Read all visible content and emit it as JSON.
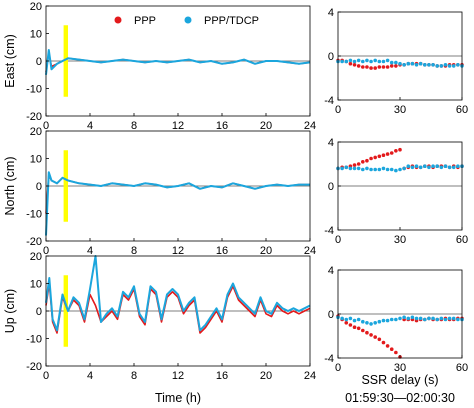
{
  "chart_data": [
    {
      "type": "line",
      "panel": "left-east",
      "ylabel": "East (cm)",
      "xlabel": "",
      "xlim": [
        0,
        24
      ],
      "ylim": [
        -20,
        20
      ],
      "xticks": [
        "0",
        "4",
        "8",
        "12",
        "16",
        "20",
        "24"
      ],
      "yticks": [
        "20",
        "10",
        "0",
        "-10",
        "-20"
      ],
      "highlight_x": [
        1.6,
        2.0
      ],
      "highlight_y": [
        -13,
        13
      ],
      "legend": {
        "placement": "top",
        "entries": [
          "PPP",
          "PPP/TDCP"
        ]
      },
      "series": [
        {
          "name": "PPP",
          "color": "#e31a1c",
          "x": [
            0,
            0.25,
            0.5,
            1,
            1.5,
            2,
            3,
            4,
            5,
            6,
            7,
            8,
            9,
            10,
            11,
            12,
            13,
            14,
            15,
            16,
            17,
            18,
            19,
            20,
            21,
            22,
            23,
            24
          ],
          "y": [
            -4,
            3,
            -2,
            -1,
            0,
            1,
            0.5,
            0,
            -0.5,
            0,
            0.5,
            0,
            -0.5,
            0,
            -0.5,
            0,
            0.5,
            -0.5,
            0,
            -1,
            -0.5,
            0.5,
            -1,
            0,
            0,
            -0.5,
            -1,
            -0.5
          ]
        },
        {
          "name": "PPP/TDCP",
          "color": "#1ba6dd",
          "x": [
            0,
            0.25,
            0.5,
            1,
            1.5,
            2,
            3,
            4,
            5,
            6,
            7,
            8,
            9,
            10,
            11,
            12,
            13,
            14,
            15,
            16,
            17,
            18,
            19,
            20,
            21,
            22,
            23,
            24
          ],
          "y": [
            -5,
            4,
            -3,
            -1,
            0,
            1,
            0.5,
            0,
            -0.5,
            0,
            0.5,
            0,
            -0.5,
            0,
            -0.5,
            0,
            0.5,
            -0.5,
            0,
            -1,
            -0.5,
            0.5,
            -1,
            0,
            0,
            -0.5,
            -1,
            -0.5
          ]
        }
      ]
    },
    {
      "type": "line",
      "panel": "left-north",
      "ylabel": "North (cm)",
      "xlabel": "",
      "xlim": [
        0,
        24
      ],
      "ylim": [
        -20,
        20
      ],
      "xticks": [
        "0",
        "4",
        "8",
        "12",
        "16",
        "20",
        "24"
      ],
      "yticks": [
        "20",
        "10",
        "0",
        "-10",
        "-20"
      ],
      "highlight_x": [
        1.6,
        2.0
      ],
      "highlight_y": [
        -13,
        13
      ],
      "series": [
        {
          "name": "PPP",
          "color": "#e31a1c",
          "x": [
            0,
            0.25,
            0.5,
            1,
            1.5,
            2,
            3,
            4,
            5,
            6,
            7,
            8,
            9,
            10,
            11,
            12,
            13,
            14,
            15,
            16,
            17,
            18,
            19,
            20,
            21,
            22,
            23,
            24
          ],
          "y": [
            -10,
            4,
            2,
            1,
            3,
            2,
            1,
            0.5,
            0,
            1,
            0.5,
            0,
            1,
            0.5,
            -0.5,
            0,
            1,
            -1,
            0,
            -0.5,
            1,
            0,
            -1,
            0,
            0.5,
            0,
            0.5,
            0.5
          ]
        },
        {
          "name": "PPP/TDCP",
          "color": "#1ba6dd",
          "x": [
            0,
            0.25,
            0.5,
            1,
            1.5,
            2,
            3,
            4,
            5,
            6,
            7,
            8,
            9,
            10,
            11,
            12,
            13,
            14,
            15,
            16,
            17,
            18,
            19,
            20,
            21,
            22,
            23,
            24
          ],
          "y": [
            -18,
            5,
            2,
            1,
            3,
            2,
            1,
            0.5,
            0,
            1,
            0.5,
            0,
            1,
            0.5,
            -0.5,
            0,
            1,
            -1,
            0,
            -0.5,
            1,
            0,
            -1,
            0,
            0.5,
            0,
            0.5,
            0.5
          ]
        }
      ]
    },
    {
      "type": "line",
      "panel": "left-up",
      "ylabel": "Up (cm)",
      "xlabel": "Time (h)",
      "xlim": [
        0,
        24
      ],
      "ylim": [
        -20,
        20
      ],
      "xticks": [
        "0",
        "4",
        "8",
        "12",
        "16",
        "20",
        "24"
      ],
      "yticks": [
        "20",
        "10",
        "0",
        "-10",
        "-20"
      ],
      "highlight_x": [
        1.6,
        2.0
      ],
      "highlight_y": [
        -13,
        13
      ],
      "series": [
        {
          "name": "PPP",
          "color": "#e31a1c",
          "x": [
            0,
            0.3,
            0.6,
            1,
            1.5,
            2,
            2.5,
            3,
            3.5,
            4,
            4.5,
            5,
            5.5,
            6,
            6.5,
            7,
            7.5,
            8,
            8.5,
            9,
            9.5,
            10,
            10.5,
            11,
            11.5,
            12,
            12.5,
            13,
            13.5,
            14,
            14.5,
            15,
            15.5,
            16,
            16.5,
            17,
            17.5,
            18,
            18.5,
            19,
            19.5,
            20,
            20.5,
            21,
            21.5,
            22,
            22.5,
            23,
            23.5,
            24
          ],
          "y": [
            2,
            10,
            -4,
            -8,
            5,
            0,
            4,
            2,
            -4,
            6,
            2,
            -4,
            -2,
            0,
            -3,
            6,
            4,
            8,
            -2,
            -5,
            8,
            6,
            -4,
            5,
            7,
            5,
            -1,
            2,
            4,
            -8,
            -6,
            -3,
            0,
            -4,
            5,
            9,
            4,
            2,
            0,
            -2,
            4,
            -1,
            -2,
            2,
            0,
            -1,
            0,
            -1,
            0,
            1
          ]
        },
        {
          "name": "PPP/TDCP",
          "color": "#1ba6dd",
          "x": [
            0,
            0.3,
            0.6,
            1,
            1.5,
            2,
            2.5,
            3,
            3.5,
            4,
            4.5,
            5,
            5.5,
            6,
            6.5,
            7,
            7.5,
            8,
            8.5,
            9,
            9.5,
            10,
            10.5,
            11,
            11.5,
            12,
            12.5,
            13,
            13.5,
            14,
            14.5,
            15,
            15.5,
            16,
            16.5,
            17,
            17.5,
            18,
            18.5,
            19,
            19.5,
            20,
            20.5,
            21,
            21.5,
            22,
            22.5,
            23,
            23.5,
            24
          ],
          "y": [
            3,
            12,
            -3,
            -7,
            6,
            0,
            5,
            3,
            -3,
            8,
            20,
            -4,
            -1,
            1,
            -2,
            7,
            5,
            9,
            -1,
            -4,
            9,
            7,
            -3,
            6,
            8,
            6,
            0,
            3,
            5,
            -7,
            -5,
            -2,
            1,
            -3,
            6,
            10,
            5,
            3,
            1,
            -1,
            5,
            0,
            -1,
            3,
            1,
            0,
            1,
            0,
            1,
            2
          ]
        }
      ]
    },
    {
      "type": "scatter",
      "panel": "right-east",
      "xlim": [
        0,
        60
      ],
      "ylim": [
        -4,
        4
      ],
      "xticks": [
        "0",
        "30",
        "60"
      ],
      "yticks": [
        "4",
        "0",
        "-4"
      ],
      "series": [
        {
          "name": "PPP",
          "color": "#e31a1c",
          "x": [
            0,
            2,
            4,
            6,
            8,
            10,
            12,
            14,
            16,
            18,
            20,
            22,
            24,
            26,
            28,
            30,
            32,
            34,
            36,
            38,
            40,
            42,
            44,
            46,
            48,
            50,
            52,
            54,
            56,
            58,
            60
          ],
          "y": [
            -0.4,
            -0.4,
            -0.5,
            -0.7,
            -0.8,
            -0.9,
            -1.0,
            -1.0,
            -1.1,
            -1.1,
            -1.0,
            -1.0,
            -1.0,
            -0.9,
            -0.9,
            -0.8,
            -0.8,
            -0.7,
            -0.7,
            -0.7,
            -0.7,
            -0.8,
            -0.8,
            -0.8,
            -0.9,
            -0.9,
            -0.9,
            -0.8,
            -0.8,
            -0.8,
            -0.8
          ]
        },
        {
          "name": "PPP/TDCP",
          "color": "#1ba6dd",
          "x": [
            0,
            2,
            4,
            6,
            8,
            10,
            12,
            14,
            16,
            18,
            20,
            22,
            24,
            26,
            28,
            30,
            32,
            34,
            36,
            38,
            40,
            42,
            44,
            46,
            48,
            50,
            52,
            54,
            56,
            58,
            60
          ],
          "y": [
            -0.5,
            -0.5,
            -0.5,
            -0.4,
            -0.5,
            -0.4,
            -0.5,
            -0.4,
            -0.5,
            -0.4,
            -0.5,
            -0.5,
            -0.4,
            -0.6,
            -0.6,
            -0.7,
            -0.8,
            -0.7,
            -0.7,
            -0.8,
            -0.7,
            -0.8,
            -0.8,
            -0.8,
            -0.9,
            -0.9,
            -0.8,
            -0.9,
            -0.9,
            -0.8,
            -0.9
          ]
        }
      ]
    },
    {
      "type": "scatter",
      "panel": "right-north",
      "xlim": [
        0,
        60
      ],
      "ylim": [
        -4,
        4
      ],
      "xticks": [
        "0",
        "30",
        "60"
      ],
      "yticks": [
        "4",
        "0",
        "-4"
      ],
      "series": [
        {
          "name": "PPP",
          "color": "#e31a1c",
          "x": [
            0,
            2,
            4,
            6,
            8,
            10,
            12,
            14,
            16,
            18,
            20,
            22,
            24,
            26,
            28,
            30,
            32,
            34,
            36,
            38,
            40,
            42,
            44,
            46,
            48,
            50,
            52,
            54,
            56,
            58,
            60
          ],
          "y": [
            1.6,
            1.7,
            1.7,
            1.8,
            1.9,
            2.0,
            2.2,
            2.3,
            2.5,
            2.6,
            2.7,
            2.8,
            2.9,
            3.0,
            3.2,
            3.3,
            1.6,
            1.7,
            1.8,
            1.7,
            1.7,
            1.8,
            1.8,
            1.7,
            1.8,
            1.8,
            1.8,
            1.7,
            1.8,
            1.7,
            1.8
          ]
        },
        {
          "name": "PPP/TDCP",
          "color": "#1ba6dd",
          "x": [
            0,
            2,
            4,
            6,
            8,
            10,
            12,
            14,
            16,
            18,
            20,
            22,
            24,
            26,
            28,
            30,
            32,
            34,
            36,
            38,
            40,
            42,
            44,
            46,
            48,
            50,
            52,
            54,
            56,
            58,
            60
          ],
          "y": [
            1.6,
            1.6,
            1.7,
            1.6,
            1.6,
            1.6,
            1.5,
            1.6,
            1.5,
            1.5,
            1.5,
            1.6,
            1.5,
            1.5,
            1.4,
            1.5,
            1.6,
            1.8,
            1.7,
            1.8,
            1.7,
            1.8,
            1.7,
            1.8,
            1.8,
            1.7,
            1.8,
            1.7,
            1.7,
            1.8,
            1.8
          ]
        }
      ]
    },
    {
      "type": "scatter",
      "panel": "right-up",
      "xlabel": "SSR delay (s)",
      "xlim": [
        0,
        60
      ],
      "ylim": [
        -4,
        4
      ],
      "xticks": [
        "0",
        "30",
        "60"
      ],
      "yticks": [
        "4",
        "0",
        "-4"
      ],
      "series": [
        {
          "name": "PPP",
          "color": "#e31a1c",
          "x": [
            0,
            2,
            4,
            6,
            8,
            10,
            12,
            14,
            16,
            18,
            20,
            22,
            24,
            26,
            28,
            30,
            32,
            34,
            36,
            38,
            40,
            42,
            44,
            46,
            48,
            50,
            52,
            54,
            56,
            58,
            60
          ],
          "y": [
            -0.2,
            -0.5,
            -0.8,
            -1.0,
            -1.2,
            -1.3,
            -1.5,
            -1.7,
            -1.9,
            -2.1,
            -2.3,
            -2.6,
            -2.9,
            -3.2,
            -3.5,
            -3.9,
            -0.5,
            -0.5,
            -0.5,
            -0.6,
            -0.5,
            -0.5,
            -0.4,
            -0.5,
            -0.5,
            -0.5,
            -0.4,
            -0.5,
            -0.5,
            -0.4,
            -0.4
          ]
        },
        {
          "name": "PPP/TDCP",
          "color": "#1ba6dd",
          "x": [
            0,
            2,
            4,
            6,
            8,
            10,
            12,
            14,
            16,
            18,
            20,
            22,
            24,
            26,
            28,
            30,
            32,
            34,
            36,
            38,
            40,
            42,
            44,
            46,
            48,
            50,
            52,
            54,
            56,
            58,
            60
          ],
          "y": [
            -0.3,
            -0.4,
            -0.5,
            -0.4,
            -0.6,
            -0.5,
            -0.7,
            -0.8,
            -0.9,
            -0.8,
            -0.7,
            -0.6,
            -0.6,
            -0.5,
            -0.5,
            -0.4,
            -0.3,
            -0.4,
            -0.3,
            -0.4,
            -0.4,
            -0.5,
            -0.4,
            -0.4,
            -0.5,
            -0.4,
            -0.5,
            -0.4,
            -0.4,
            -0.5,
            -0.5
          ]
        }
      ]
    }
  ],
  "footer": {
    "time_window": "01:59:30—02:00:30"
  },
  "highlight_color": "#ffff00"
}
